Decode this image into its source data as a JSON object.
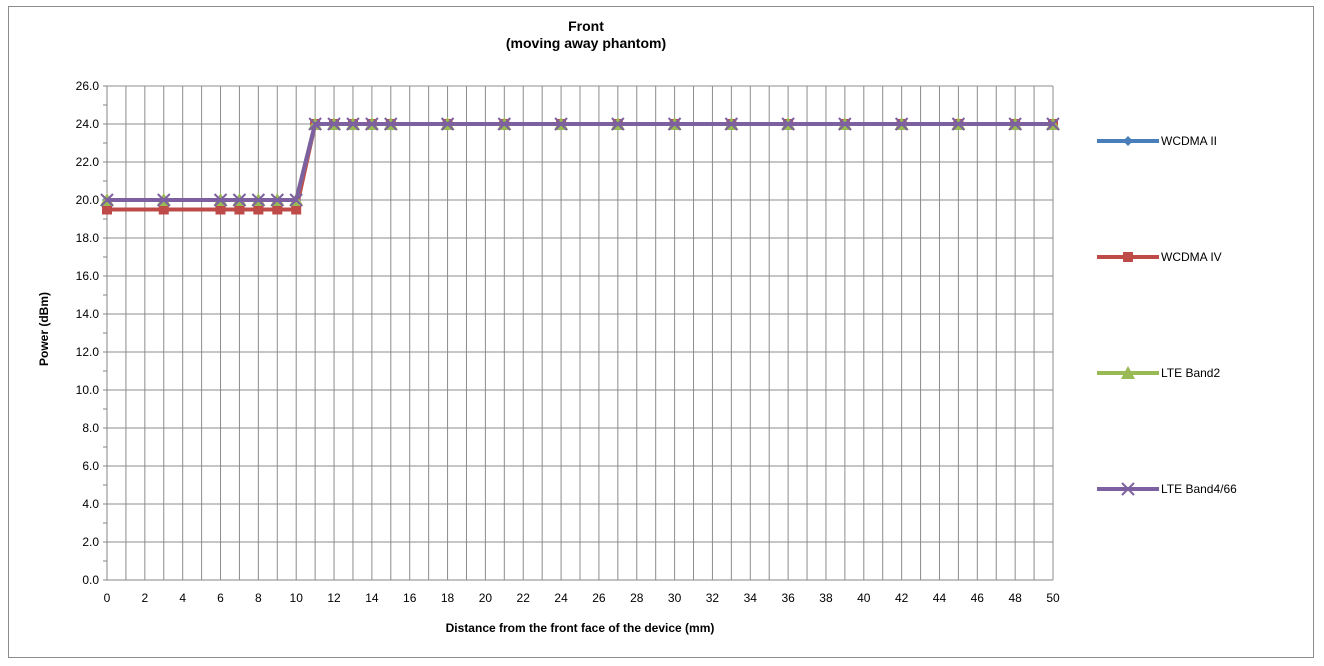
{
  "chart_data": {
    "type": "line",
    "title": "Front",
    "subtitle": "(moving away phantom)",
    "xlabel": "Distance from the front face of the device (mm)",
    "ylabel": "Power (dBm)",
    "x": [
      0,
      3,
      6,
      7,
      8,
      9,
      10,
      11,
      12,
      13,
      14,
      15,
      18,
      21,
      24,
      27,
      30,
      33,
      36,
      39,
      42,
      45,
      48,
      50
    ],
    "xlim": [
      0,
      50
    ],
    "xticks": [
      "0",
      "2",
      "4",
      "6",
      "8",
      "10",
      "12",
      "14",
      "16",
      "18",
      "20",
      "22",
      "24",
      "26",
      "28",
      "30",
      "32",
      "34",
      "36",
      "38",
      "40",
      "42",
      "44",
      "46",
      "48",
      "50"
    ],
    "ylim": [
      0,
      26
    ],
    "yticks": [
      "0.0",
      "2.0",
      "4.0",
      "6.0",
      "8.0",
      "10.0",
      "12.0",
      "14.0",
      "16.0",
      "18.0",
      "20.0",
      "22.0",
      "24.0",
      "26.0"
    ],
    "grid": true,
    "legend_position": "right",
    "series": [
      {
        "name": "WCDMA II",
        "color": "#4a7ebb",
        "marker": "diamond",
        "values": [
          20,
          20,
          20,
          20,
          20,
          20,
          20,
          24,
          24,
          24,
          24,
          24,
          24,
          24,
          24,
          24,
          24,
          24,
          24,
          24,
          24,
          24,
          24,
          24
        ]
      },
      {
        "name": "WCDMA IV",
        "color": "#be4b48",
        "marker": "square",
        "values": [
          19.5,
          19.5,
          19.5,
          19.5,
          19.5,
          19.5,
          19.5,
          24,
          24,
          24,
          24,
          24,
          24,
          24,
          24,
          24,
          24,
          24,
          24,
          24,
          24,
          24,
          24,
          24
        ]
      },
      {
        "name": "LTE Band2",
        "color": "#98b954",
        "marker": "triangle",
        "values": [
          20,
          20,
          20,
          20,
          20,
          20,
          20,
          24,
          24,
          24,
          24,
          24,
          24,
          24,
          24,
          24,
          24,
          24,
          24,
          24,
          24,
          24,
          24,
          24
        ]
      },
      {
        "name": "LTE Band4/66",
        "color": "#7d60a0",
        "marker": "x",
        "values": [
          20,
          20,
          20,
          20,
          20,
          20,
          20,
          24,
          24,
          24,
          24,
          24,
          24,
          24,
          24,
          24,
          24,
          24,
          24,
          24,
          24,
          24,
          24,
          24
        ]
      }
    ]
  }
}
